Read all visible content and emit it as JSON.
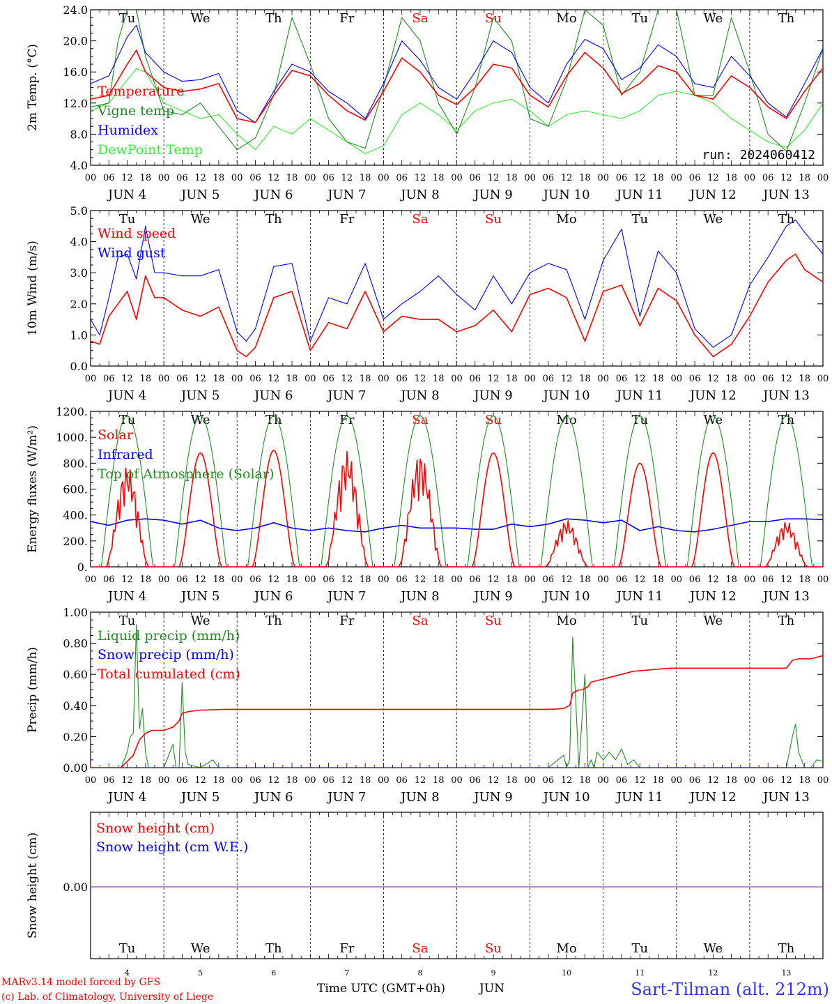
{
  "footer": {
    "model_line": "MARv3.14 model forced by GFS",
    "lab_line": "(c) Lab. of Climatology, University of Liege",
    "xaxis_title": "Time UTC (GMT+0h)",
    "xaxis_month": "JUN",
    "station": "Sart-Tilman (alt. 212m)"
  },
  "colors": {
    "red": "#ff0000",
    "green": "#228b22",
    "blue": "#0000ff",
    "lightgreen": "#33ee33",
    "purple": "#7a1a9a",
    "dark": "#000000"
  },
  "days": {
    "names": [
      "Tu",
      "We",
      "Th",
      "Fr",
      "Sa",
      "Su",
      "Mo",
      "Tu",
      "We",
      "Th"
    ],
    "weekend": [
      false,
      false,
      false,
      false,
      true,
      true,
      false,
      false,
      false,
      false
    ],
    "dates": [
      "JUN  4",
      "JUN  5",
      "JUN  6",
      "JUN  7",
      "JUN  8",
      "JUN  9",
      "JUN 10",
      "JUN 11",
      "JUN 12",
      "JUN 13"
    ],
    "numbers": [
      "4",
      "5",
      "6",
      "7",
      "8",
      "9",
      "10",
      "11",
      "12",
      "13"
    ],
    "hour_ticks": [
      "00",
      "06",
      "12",
      "18"
    ],
    "end_tick": "00"
  },
  "chart_data": [
    {
      "type": "line",
      "ylabel": "2m Temp. (°C)",
      "ylim": [
        4,
        24
      ],
      "yticks": [
        "4.0",
        "8.0",
        "12.0",
        "16.0",
        "20.0",
        "24.0"
      ],
      "annotation": "run: 2024060412",
      "x_unit": "hours since JUN 4 00 UTC",
      "series": [
        {
          "name": "Temperature",
          "color": "#ff0000",
          "x": [
            0,
            6,
            12,
            15,
            18,
            24,
            30,
            36,
            42,
            48,
            54,
            60,
            66,
            72,
            78,
            84,
            90,
            96,
            102,
            108,
            114,
            120,
            126,
            132,
            138,
            144,
            150,
            156,
            162,
            168,
            174,
            180,
            186,
            192,
            198,
            204,
            210,
            216,
            222,
            228,
            234,
            240
          ],
          "y": [
            12.5,
            13,
            17,
            18.8,
            16,
            14,
            13.5,
            13.8,
            14.5,
            10,
            9.5,
            13,
            16.2,
            15.5,
            13,
            11,
            9.8,
            13.5,
            17.8,
            16,
            13,
            11.8,
            14,
            17,
            16.5,
            13,
            11.5,
            15.5,
            18.5,
            16.5,
            13.2,
            14.5,
            16.8,
            16,
            13,
            12.5,
            15.5,
            14,
            11.5,
            10,
            13.5,
            16.5
          ]
        },
        {
          "name": "Humidex",
          "color": "#0000ff",
          "x": [
            0,
            6,
            12,
            15,
            18,
            24,
            30,
            36,
            42,
            48,
            54,
            60,
            66,
            72,
            78,
            84,
            90,
            96,
            102,
            108,
            114,
            120,
            126,
            132,
            138,
            144,
            150,
            156,
            162,
            168,
            174,
            180,
            186,
            192,
            198,
            204,
            210,
            216,
            222,
            228,
            234,
            240
          ],
          "y": [
            14.5,
            15.5,
            20.5,
            22,
            18.5,
            16,
            14.8,
            15,
            15.8,
            11,
            9.5,
            13.5,
            17,
            16,
            13.5,
            12,
            10,
            14.5,
            20,
            17.5,
            14,
            12.5,
            16,
            20,
            18.5,
            14,
            12,
            17,
            20.2,
            19,
            15,
            16.5,
            19.5,
            18,
            14.5,
            14,
            18,
            15.5,
            12,
            10.2,
            14.5,
            19
          ]
        },
        {
          "name": "Vigne temp",
          "color": "#228b22",
          "x": [
            0,
            6,
            9,
            12,
            15,
            18,
            24,
            30,
            36,
            42,
            48,
            54,
            60,
            66,
            72,
            78,
            84,
            90,
            96,
            102,
            108,
            114,
            120,
            126,
            132,
            138,
            144,
            150,
            156,
            162,
            168,
            174,
            180,
            186,
            192,
            198,
            204,
            210,
            216,
            222,
            228,
            234,
            240
          ],
          "y": [
            11.5,
            12,
            20,
            24,
            24,
            18,
            11,
            10.5,
            12,
            9,
            6,
            7.5,
            13,
            23,
            17,
            10,
            7,
            6.2,
            14,
            23,
            20,
            12,
            8,
            14,
            23,
            20,
            10,
            9,
            15,
            24,
            22,
            13,
            16,
            24,
            24,
            13,
            13,
            23,
            16,
            8,
            5.8,
            12,
            19
          ]
        },
        {
          "name": "DewPoint Temp",
          "color": "#33ee33",
          "x": [
            0,
            6,
            12,
            15,
            18,
            24,
            30,
            36,
            42,
            48,
            54,
            60,
            66,
            72,
            78,
            84,
            90,
            96,
            102,
            108,
            114,
            120,
            126,
            132,
            138,
            144,
            150,
            156,
            162,
            168,
            174,
            180,
            186,
            192,
            198,
            204,
            210,
            216,
            222,
            228,
            234,
            240
          ],
          "y": [
            11,
            12,
            15,
            16.4,
            16,
            12,
            11,
            10,
            10.5,
            8,
            6,
            9,
            8,
            10,
            8.5,
            7,
            5.5,
            6.5,
            10.5,
            12,
            10.5,
            8.5,
            11,
            12,
            12.5,
            11,
            9,
            10.5,
            11,
            10.5,
            10,
            11,
            13,
            13.5,
            13,
            12,
            10,
            8.5,
            7,
            6.3,
            8.5,
            12
          ]
        }
      ]
    },
    {
      "type": "line",
      "ylabel": "10m Wind (m/s)",
      "ylim": [
        0,
        5
      ],
      "yticks": [
        "0.0",
        "1.0",
        "2.0",
        "3.0",
        "4.0",
        "5.0"
      ],
      "x_unit": "hours since JUN 4 00 UTC",
      "series": [
        {
          "name": "Wind speed",
          "color": "#ff0000",
          "x": [
            0,
            3,
            6,
            9,
            12,
            15,
            18,
            21,
            24,
            30,
            36,
            42,
            48,
            51,
            54,
            60,
            66,
            72,
            78,
            84,
            90,
            96,
            102,
            108,
            114,
            120,
            126,
            132,
            138,
            144,
            150,
            156,
            162,
            168,
            174,
            180,
            186,
            192,
            198,
            204,
            210,
            216,
            222,
            228,
            231,
            234,
            240
          ],
          "y": [
            0.8,
            0.7,
            1.6,
            2,
            2.4,
            1.5,
            2.9,
            2.2,
            2.2,
            1.8,
            1.6,
            1.9,
            0.5,
            0.3,
            0.6,
            2.2,
            2.4,
            0.5,
            1.4,
            1.2,
            2.4,
            1.1,
            1.6,
            1.5,
            1.5,
            1.1,
            1.3,
            1.8,
            1.1,
            2.3,
            2.5,
            2.2,
            0.8,
            2.4,
            2.6,
            1.3,
            2.5,
            2.1,
            1,
            0.3,
            0.7,
            1.6,
            2.7,
            3.4,
            3.6,
            3.1,
            2.7
          ]
        },
        {
          "name": "Wind gust",
          "color": "#0000ff",
          "x": [
            0,
            3,
            6,
            9,
            12,
            15,
            18,
            21,
            24,
            30,
            36,
            42,
            48,
            51,
            54,
            60,
            66,
            72,
            78,
            84,
            90,
            96,
            102,
            108,
            114,
            120,
            126,
            132,
            138,
            144,
            150,
            156,
            162,
            168,
            174,
            180,
            186,
            192,
            198,
            204,
            210,
            216,
            222,
            228,
            231,
            234,
            240
          ],
          "y": [
            1.5,
            1,
            2.2,
            3.5,
            3.6,
            2.8,
            4.5,
            3,
            3,
            2.9,
            2.9,
            3.1,
            1.1,
            0.8,
            1.2,
            3.2,
            3.3,
            0.8,
            2.2,
            2,
            3.3,
            1.5,
            2,
            2.4,
            2.9,
            2.3,
            1.8,
            2.9,
            2,
            3,
            3.3,
            3.1,
            1.5,
            3.4,
            4.4,
            1.6,
            3.7,
            3,
            1.2,
            0.6,
            1,
            2.6,
            3.5,
            4.5,
            4.7,
            4.3,
            3.6
          ]
        }
      ]
    },
    {
      "type": "line",
      "ylabel": "Energy fluxes (W/m²)",
      "ylim": [
        0,
        1200
      ],
      "yticks": [
        "0.",
        "200.",
        "400.",
        "600.",
        "800.",
        "1000.",
        "1200."
      ],
      "x_unit": "hours since JUN 4 00 UTC",
      "daily_peaks": {
        "Top of Atmosphere (Solar)": [
          1165,
          1165,
          1165,
          1165,
          1165,
          1165,
          1165,
          1165,
          1165,
          1165
        ],
        "Solar": [
          780,
          880,
          900,
          895,
          880,
          880,
          360,
          800,
          880,
          350
        ]
      },
      "series": [
        {
          "name": "Solar",
          "color": "#ff0000"
        },
        {
          "name": "Infrared",
          "color": "#0000ff",
          "x": [
            0,
            6,
            12,
            18,
            24,
            30,
            36,
            42,
            48,
            54,
            60,
            66,
            72,
            78,
            84,
            90,
            96,
            102,
            108,
            114,
            120,
            126,
            132,
            138,
            144,
            150,
            156,
            162,
            168,
            174,
            180,
            186,
            192,
            198,
            204,
            210,
            216,
            222,
            228,
            234,
            240
          ],
          "y": [
            350,
            320,
            360,
            370,
            360,
            330,
            360,
            300,
            280,
            300,
            340,
            300,
            280,
            300,
            280,
            270,
            300,
            320,
            300,
            300,
            300,
            290,
            290,
            330,
            310,
            330,
            370,
            360,
            340,
            360,
            280,
            310,
            280,
            270,
            290,
            320,
            350,
            350,
            370,
            370,
            365
          ]
        },
        {
          "name": "Top of Atmosphere (Solar)",
          "color": "#228b22"
        }
      ]
    },
    {
      "type": "line",
      "ylabel": "Precip (mm/h)",
      "ylim": [
        0,
        1
      ],
      "yticks": [
        "0.00",
        "0.20",
        "0.40",
        "0.60",
        "0.80",
        "1.00"
      ],
      "x_unit": "hours since JUN 4 00 UTC",
      "series": [
        {
          "name": "Liquid precip (mm/h)",
          "color": "#228b22",
          "x": [
            0,
            10,
            12,
            13,
            14,
            15,
            16,
            17,
            18,
            19,
            20,
            24,
            27,
            28,
            29,
            30,
            31,
            32,
            36,
            40,
            42,
            44,
            48,
            150,
            155,
            156,
            157,
            158,
            160,
            162,
            163,
            164,
            165,
            166,
            168,
            170,
            172,
            174,
            176,
            178,
            180,
            182,
            228,
            230,
            231,
            232,
            234,
            236,
            238,
            240
          ],
          "y": [
            0,
            0,
            0.1,
            0.2,
            0.22,
            0.92,
            0.25,
            0.38,
            0.1,
            0,
            0,
            0,
            0.15,
            0,
            0,
            0.55,
            0.1,
            0.02,
            0,
            0.05,
            0,
            0,
            0,
            0,
            0.08,
            0,
            0.05,
            0.84,
            0,
            0.6,
            0,
            0.05,
            0,
            0.1,
            0.05,
            0.1,
            0.05,
            0.12,
            0.02,
            0.05,
            0,
            0,
            0,
            0.2,
            0.28,
            0.1,
            0,
            0,
            0.05,
            0.04
          ]
        },
        {
          "name": "Snow precip (mm/h)",
          "color": "#0000ff",
          "x": [
            0,
            240
          ],
          "y": [
            0,
            0
          ]
        },
        {
          "name": "Total cumulated (cm)",
          "color": "#ff0000",
          "x": [
            0,
            10,
            14,
            16,
            18,
            20,
            24,
            27,
            29,
            30,
            32,
            36,
            44,
            48,
            150,
            155,
            157,
            158,
            160,
            161,
            163,
            164,
            166,
            170,
            174,
            178,
            190,
            200,
            215,
            228,
            230,
            232,
            236,
            240
          ],
          "y": [
            0,
            0,
            0.08,
            0.18,
            0.22,
            0.24,
            0.24,
            0.26,
            0.3,
            0.35,
            0.36,
            0.37,
            0.375,
            0.375,
            0.375,
            0.38,
            0.4,
            0.48,
            0.5,
            0.5,
            0.52,
            0.55,
            0.56,
            0.58,
            0.6,
            0.62,
            0.64,
            0.64,
            0.64,
            0.64,
            0.69,
            0.7,
            0.7,
            0.72
          ]
        }
      ]
    },
    {
      "type": "line",
      "ylabel": "Snow height (cm)",
      "yticks": [
        "0.00"
      ],
      "x_unit": "hours since JUN 4 00 UTC",
      "series": [
        {
          "name": "Snow height (cm)",
          "color": "#ff0000",
          "x": [
            0,
            240
          ],
          "y": [
            0,
            0
          ]
        },
        {
          "name": "Snow height (cm W.E.)",
          "color": "#0000ff",
          "x": [
            0,
            240
          ],
          "y": [
            0,
            0
          ]
        }
      ]
    }
  ]
}
